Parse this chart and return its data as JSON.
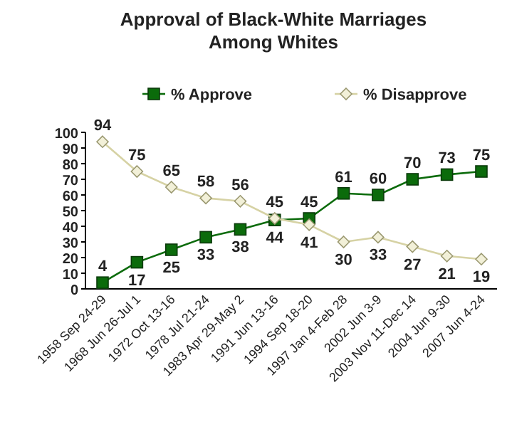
{
  "chart_data": {
    "type": "line",
    "title": "Approval of Black-White Marriages\nAmong Whites",
    "categories": [
      "1958 Sep 24-29",
      "1968 Jun 26-Jul 1",
      "1972 Oct 13-16",
      "1978 Jul 21-24",
      "1983 Apr 29-May 2",
      "1991 Jun 13-16",
      "1994 Sep 18-20",
      "1997 Jan 4-Feb 28",
      "2002 Jun 3-9",
      "2003 Nov 11-Dec 14",
      "2004 Jun 9-30",
      "2007 Jun 4-24"
    ],
    "series": [
      {
        "name": "% Approve",
        "color": "#0b6b0b",
        "marker": "square",
        "values": [
          4,
          17,
          25,
          33,
          38,
          44,
          45,
          61,
          60,
          70,
          73,
          75
        ]
      },
      {
        "name": "% Disapprove",
        "color": "#d6d2a4",
        "marker": "diamond",
        "values": [
          94,
          75,
          65,
          58,
          56,
          45,
          41,
          30,
          33,
          27,
          21,
          19
        ]
      }
    ],
    "ylim": [
      0,
      100
    ],
    "yticks": [
      0,
      10,
      20,
      30,
      40,
      50,
      60,
      70,
      80,
      90,
      100
    ],
    "grid": false,
    "legend": "top",
    "data_labels": true
  }
}
